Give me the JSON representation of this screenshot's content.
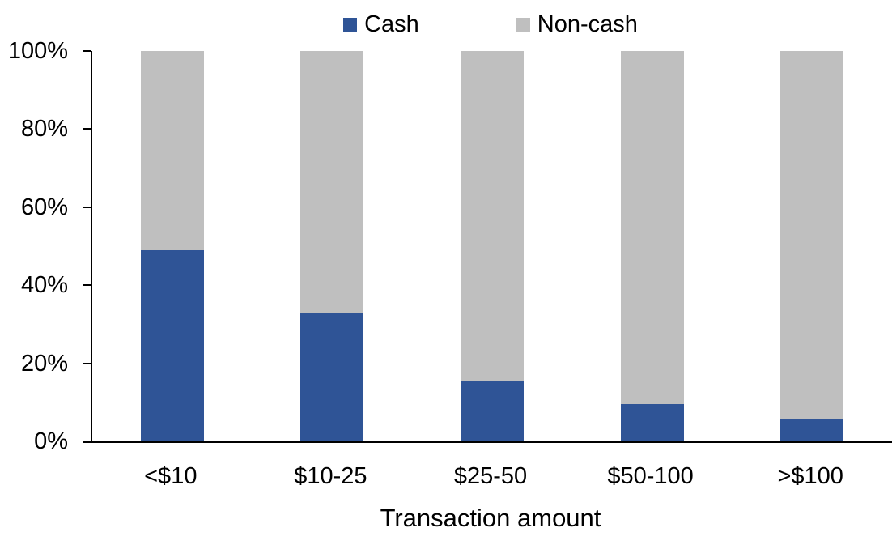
{
  "chart_data": {
    "type": "bar",
    "stacked": true,
    "percent_stacked": true,
    "title": "",
    "xlabel": "Transaction amount",
    "ylabel": "",
    "categories": [
      "<$10",
      "$10-25",
      "$25-50",
      "$50-100",
      ">$100"
    ],
    "series": [
      {
        "name": "Cash",
        "color": "#2F5496",
        "values": [
          49,
          33,
          15.5,
          9.5,
          5.5
        ]
      },
      {
        "name": "Non-cash",
        "color": "#BFBFBF",
        "values": [
          51,
          67,
          84.5,
          90.5,
          94.5
        ]
      }
    ],
    "ylim": [
      0,
      100
    ],
    "y_ticks": [
      "0%",
      "20%",
      "40%",
      "60%",
      "80%",
      "100%"
    ],
    "legend_position": "top",
    "grid": false,
    "colors": {
      "axis": "#000000",
      "text": "#000000",
      "background": "#FFFFFF"
    }
  }
}
